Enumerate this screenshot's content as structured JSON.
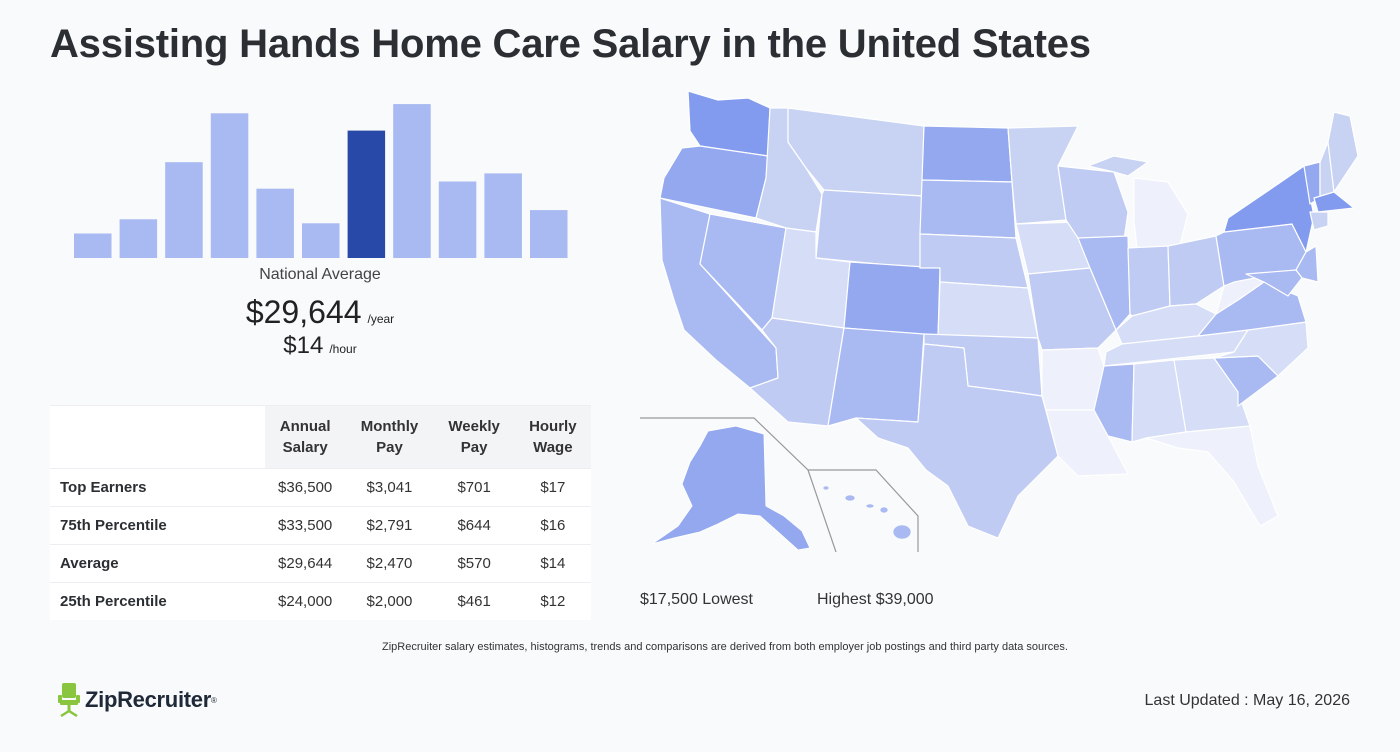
{
  "page": {
    "title": "Assisting Hands Home Care Salary in the United States",
    "national_label": "National Average",
    "annual": "$29,644",
    "annual_unit": "/year",
    "hourly": "$14",
    "hourly_unit": "/hour"
  },
  "chart_data": {
    "type": "bar",
    "values": [
      24,
      38,
      94,
      142,
      68,
      34,
      125,
      151,
      75,
      83,
      47
    ],
    "highlight_index": 6,
    "ylim": [
      0,
      155
    ],
    "colors": {
      "bar": "#a9b9f1",
      "highlight": "#2849a8"
    }
  },
  "table": {
    "headers": [
      [
        "Annual",
        "Salary"
      ],
      [
        "Monthly",
        "Pay"
      ],
      [
        "Weekly",
        "Pay"
      ],
      [
        "Hourly",
        "Wage"
      ]
    ],
    "rows": [
      {
        "label": "Top Earners",
        "values": [
          "$36,500",
          "$3,041",
          "$701",
          "$17"
        ]
      },
      {
        "label": "75th Percentile",
        "values": [
          "$33,500",
          "$2,791",
          "$644",
          "$16"
        ]
      },
      {
        "label": "Average",
        "values": [
          "$29,644",
          "$2,470",
          "$570",
          "$14"
        ]
      },
      {
        "label": "25th Percentile",
        "values": [
          "$24,000",
          "$2,000",
          "$461",
          "$12"
        ]
      }
    ]
  },
  "legend": {
    "low": "$17,500 Lowest",
    "high": "Highest $39,000",
    "colors": [
      "#eef1fb",
      "#d5ddf7",
      "#bfcbf3",
      "#a9b9f1",
      "#93a8ef",
      "#6c88ea",
      "#3f67e3"
    ]
  },
  "map_colors": {
    "lightest": "#eef1fb",
    "light": "#d5ddf7",
    "light2": "#c8d3f4",
    "mid": "#bfcbf3",
    "mid2": "#a9b9f1",
    "dark": "#93a8ef",
    "darker": "#839bee"
  },
  "footer": {
    "disclaimer": "ZipRecruiter salary estimates, histograms, trends and comparisons are derived from both employer job postings and third party data sources.",
    "brand": "ZipRecruiter",
    "brand_mark": "®",
    "updated": "Last Updated : May 16, 2026"
  }
}
